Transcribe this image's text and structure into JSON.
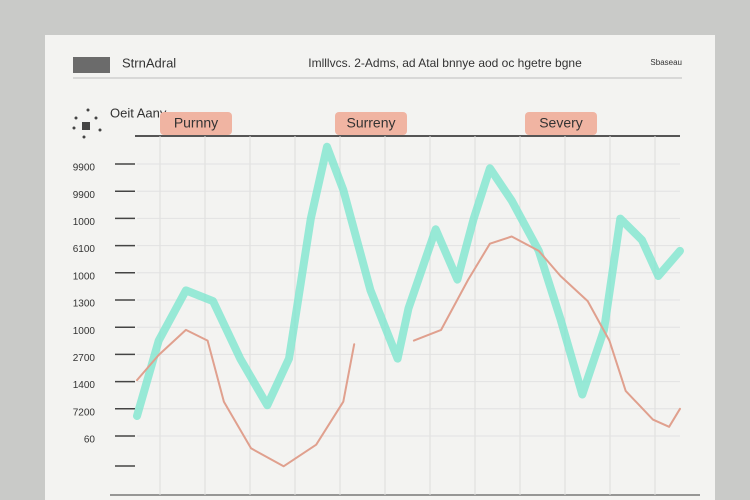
{
  "chart_data": {
    "type": "line",
    "title": "StrnAdral",
    "subtitle": "Imlllvcs. 2-Adms, ad Atal bnnye aod oc hgetre bgne",
    "corner_note": "Sbaseau",
    "panel_label": "Oeit Aany",
    "tabs": [
      "Purnny",
      "Surreny",
      "Severy"
    ],
    "y_labels": [
      "9900",
      "9900",
      "1000",
      "6100",
      "1000",
      "1300",
      "1000",
      "2700",
      "1400",
      "7200",
      "60"
    ],
    "xlim": [
      0,
      100
    ],
    "ylim": [
      0,
      100
    ],
    "series": [
      {
        "color": "#7fe6cf",
        "x": [
          0,
          4,
          9,
          14,
          19,
          24,
          28,
          32,
          35,
          38,
          43,
          48,
          50,
          55,
          59,
          62,
          65,
          69,
          74,
          78,
          82,
          86,
          89,
          93,
          96,
          100
        ],
        "values": [
          22,
          43,
          57,
          54,
          38,
          25,
          38,
          77,
          97,
          85,
          57,
          38,
          52,
          74,
          60,
          77,
          91,
          82,
          68,
          49,
          28,
          46,
          77,
          71,
          61,
          68
        ]
      },
      {
        "color": "#e0a08e",
        "x": [
          0,
          4,
          9,
          13,
          16,
          21,
          27,
          33,
          38,
          40,
          45,
          51,
          56,
          61,
          65,
          69,
          74,
          78,
          83,
          87,
          90,
          95,
          98,
          100
        ],
        "values": [
          32,
          39,
          46,
          43,
          26,
          13,
          8,
          14,
          26,
          42,
          null,
          43,
          46,
          60,
          70,
          72,
          68,
          61,
          54,
          43,
          29,
          21,
          19,
          24
        ]
      }
    ]
  }
}
